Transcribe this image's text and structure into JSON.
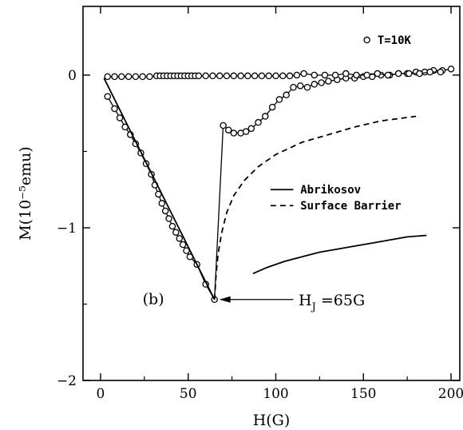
{
  "chart_data": {
    "type": "line",
    "xlabel": "H(G)",
    "ylabel": "M(10⁻⁵emu)",
    "xlim": [
      -10,
      205
    ],
    "ylim": [
      -2,
      0.45
    ],
    "x_ticks": [
      0,
      50,
      100,
      150,
      200
    ],
    "x_tick_labels": [
      "0",
      "50",
      "100",
      "150",
      "200"
    ],
    "y_ticks": [
      -2,
      -1,
      0
    ],
    "y_tick_labels": [
      "−2",
      "−1",
      "0"
    ],
    "grid": false,
    "panel_label": "(b)",
    "legend": {
      "placement": "middle-right",
      "entries": [
        {
          "label": "Abrikosov",
          "style": "solid"
        },
        {
          "label": "Surface Barrier",
          "style": "dashed"
        }
      ]
    },
    "marker_legend": {
      "label": "T=10K",
      "marker": "open-circle",
      "placement": "top-right"
    },
    "annotation": {
      "text": "H_J =65G",
      "base": "H",
      "subscript": "J",
      "rest": " =65G",
      "arrow_to": {
        "x": 65,
        "y": -1.47
      }
    },
    "series": [
      {
        "role": "increasing-field",
        "style": "markers-line",
        "points": [
          [
            4,
            -0.14
          ],
          [
            8,
            -0.22
          ],
          [
            11,
            -0.28
          ],
          [
            14,
            -0.34
          ],
          [
            17,
            -0.39
          ],
          [
            20,
            -0.45
          ],
          [
            23,
            -0.51
          ],
          [
            26,
            -0.58
          ],
          [
            29,
            -0.65
          ],
          [
            31,
            -0.72
          ],
          [
            33,
            -0.78
          ],
          [
            35,
            -0.84
          ],
          [
            37,
            -0.89
          ],
          [
            39,
            -0.94
          ],
          [
            41,
            -0.99
          ],
          [
            43,
            -1.03
          ],
          [
            45,
            -1.07
          ],
          [
            47,
            -1.11
          ],
          [
            49,
            -1.15
          ],
          [
            51,
            -1.19
          ],
          [
            55,
            -1.24
          ],
          [
            60,
            -1.37
          ],
          [
            65,
            -1.47
          ],
          [
            70,
            -0.33
          ],
          [
            73,
            -0.36
          ],
          [
            76,
            -0.38
          ],
          [
            80,
            -0.38
          ],
          [
            83,
            -0.37
          ],
          [
            86,
            -0.35
          ],
          [
            90,
            -0.31
          ],
          [
            94,
            -0.27
          ],
          [
            98,
            -0.21
          ],
          [
            102,
            -0.16
          ],
          [
            106,
            -0.13
          ],
          [
            110,
            -0.08
          ],
          [
            114,
            -0.07
          ],
          [
            118,
            -0.08
          ],
          [
            122,
            -0.06
          ],
          [
            126,
            -0.05
          ],
          [
            130,
            -0.04
          ],
          [
            135,
            -0.03
          ],
          [
            140,
            -0.02
          ],
          [
            145,
            -0.02
          ],
          [
            150,
            -0.01
          ],
          [
            155,
            -0.01
          ],
          [
            160,
            0.0
          ],
          [
            165,
            0.0
          ],
          [
            170,
            0.01
          ],
          [
            175,
            0.01
          ],
          [
            180,
            0.02
          ],
          [
            185,
            0.02
          ],
          [
            190,
            0.03
          ],
          [
            195,
            0.03
          ],
          [
            200,
            0.04
          ]
        ]
      },
      {
        "role": "decreasing-field",
        "style": "markers-line",
        "points": [
          [
            4,
            -0.01
          ],
          [
            8,
            -0.01
          ],
          [
            12,
            -0.01
          ],
          [
            16,
            -0.01
          ],
          [
            20,
            -0.01
          ],
          [
            24,
            -0.01
          ],
          [
            28,
            -0.01
          ],
          [
            32,
            -0.005
          ],
          [
            34,
            -0.005
          ],
          [
            36,
            -0.005
          ],
          [
            38,
            -0.005
          ],
          [
            40,
            -0.005
          ],
          [
            42,
            -0.005
          ],
          [
            44,
            -0.005
          ],
          [
            46,
            -0.005
          ],
          [
            48,
            -0.005
          ],
          [
            50,
            -0.005
          ],
          [
            52,
            -0.005
          ],
          [
            54,
            -0.005
          ],
          [
            56,
            -0.005
          ],
          [
            60,
            -0.005
          ],
          [
            64,
            -0.005
          ],
          [
            68,
            -0.005
          ],
          [
            72,
            -0.005
          ],
          [
            76,
            -0.005
          ],
          [
            80,
            -0.005
          ],
          [
            84,
            -0.005
          ],
          [
            88,
            -0.005
          ],
          [
            92,
            -0.005
          ],
          [
            96,
            -0.005
          ],
          [
            100,
            -0.005
          ],
          [
            104,
            -0.005
          ],
          [
            108,
            -0.005
          ],
          [
            112,
            0.0
          ],
          [
            116,
            0.01
          ],
          [
            122,
            0.0
          ],
          [
            128,
            0.0
          ],
          [
            134,
            0.0
          ],
          [
            140,
            0.01
          ],
          [
            146,
            0.0
          ],
          [
            152,
            0.0
          ],
          [
            158,
            0.01
          ],
          [
            164,
            0.0
          ],
          [
            170,
            0.01
          ],
          [
            176,
            0.01
          ],
          [
            182,
            0.01
          ],
          [
            188,
            0.02
          ],
          [
            194,
            0.02
          ]
        ]
      },
      {
        "role": "linear-fit",
        "style": "solid",
        "points": [
          [
            2,
            -0.02
          ],
          [
            65,
            -1.47
          ]
        ]
      },
      {
        "name": "Abrikosov",
        "style": "solid",
        "points": [
          [
            87,
            -1.3
          ],
          [
            95,
            -1.26
          ],
          [
            105,
            -1.22
          ],
          [
            115,
            -1.19
          ],
          [
            125,
            -1.16
          ],
          [
            135,
            -1.14
          ],
          [
            145,
            -1.12
          ],
          [
            155,
            -1.1
          ],
          [
            165,
            -1.08
          ],
          [
            175,
            -1.06
          ],
          [
            186,
            -1.05
          ]
        ]
      },
      {
        "name": "Surface Barrier",
        "style": "dashed",
        "points": [
          [
            65,
            -1.47
          ],
          [
            66,
            -1.3
          ],
          [
            67,
            -1.18
          ],
          [
            69,
            -1.04
          ],
          [
            72,
            -0.9
          ],
          [
            76,
            -0.79
          ],
          [
            82,
            -0.69
          ],
          [
            90,
            -0.6
          ],
          [
            100,
            -0.52
          ],
          [
            115,
            -0.44
          ],
          [
            130,
            -0.39
          ],
          [
            145,
            -0.34
          ],
          [
            160,
            -0.3
          ],
          [
            180,
            -0.27
          ]
        ]
      }
    ]
  }
}
